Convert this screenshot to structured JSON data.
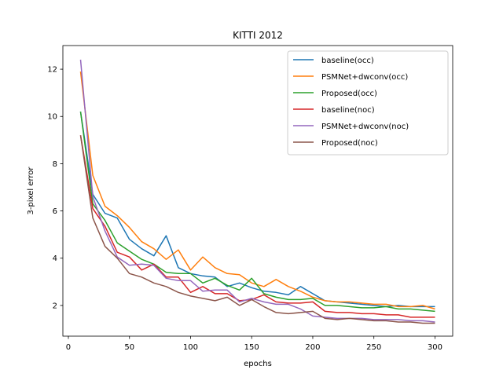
{
  "chart_data": {
    "type": "line",
    "title": "KITTI 2012",
    "xlabel": "epochs",
    "ylabel": "3-pixel error",
    "xlim": [
      -4.5,
      314.5
    ],
    "ylim": [
      0.7,
      13.0
    ],
    "xticks": [
      0,
      50,
      100,
      150,
      200,
      250,
      300
    ],
    "yticks": [
      2,
      4,
      6,
      8,
      10,
      12
    ],
    "grid": false,
    "legend_position": "top-right",
    "x": [
      10,
      20,
      30,
      40,
      50,
      60,
      70,
      80,
      90,
      100,
      110,
      120,
      130,
      140,
      150,
      160,
      170,
      180,
      190,
      200,
      210,
      220,
      230,
      240,
      250,
      260,
      270,
      280,
      290,
      300
    ],
    "series": [
      {
        "name": "baseline(occ)",
        "color": "#1f77b4",
        "values": [
          10.2,
          6.7,
          5.9,
          5.7,
          4.8,
          4.4,
          4.1,
          4.95,
          3.6,
          3.35,
          3.25,
          3.2,
          2.8,
          2.95,
          2.75,
          2.6,
          2.55,
          2.45,
          2.8,
          2.5,
          2.2,
          2.15,
          2.1,
          2.05,
          2.0,
          1.95,
          2.0,
          1.95,
          1.95,
          1.95
        ]
      },
      {
        "name": "PSMNet+dwconv(occ)",
        "color": "#ff7f0e",
        "values": [
          11.9,
          7.5,
          6.2,
          5.8,
          5.3,
          4.7,
          4.4,
          3.95,
          4.35,
          3.5,
          4.05,
          3.6,
          3.35,
          3.3,
          2.95,
          2.8,
          3.1,
          2.8,
          2.6,
          2.35,
          2.2,
          2.15,
          2.15,
          2.1,
          2.05,
          2.05,
          1.95,
          1.95,
          2.0,
          1.85
        ]
      },
      {
        "name": "Proposed(occ)",
        "color": "#2ca02c",
        "values": [
          10.2,
          6.3,
          5.6,
          4.65,
          4.3,
          3.95,
          3.75,
          3.4,
          3.35,
          3.35,
          2.95,
          3.15,
          2.85,
          2.65,
          3.15,
          2.5,
          2.35,
          2.25,
          2.25,
          2.3,
          2.0,
          2.0,
          1.95,
          1.9,
          1.9,
          1.95,
          1.85,
          1.85,
          1.8,
          1.75
        ]
      },
      {
        "name": "baseline(noc)",
        "color": "#d62728",
        "values": [
          9.2,
          6.1,
          5.35,
          4.25,
          4.05,
          3.5,
          3.75,
          3.2,
          3.2,
          2.55,
          2.8,
          2.5,
          2.5,
          2.2,
          2.25,
          2.45,
          2.15,
          2.1,
          2.1,
          2.15,
          1.75,
          1.7,
          1.7,
          1.65,
          1.65,
          1.6,
          1.6,
          1.5,
          1.5,
          1.5
        ]
      },
      {
        "name": "PSMNet+dwconv(noc)",
        "color": "#9467bd",
        "values": [
          12.4,
          6.6,
          5.15,
          4.05,
          3.7,
          3.75,
          3.7,
          3.15,
          3.05,
          3.05,
          2.6,
          2.65,
          2.65,
          2.15,
          2.3,
          2.15,
          2.05,
          2.05,
          1.85,
          1.55,
          1.5,
          1.45,
          1.45,
          1.45,
          1.4,
          1.4,
          1.4,
          1.35,
          1.35,
          1.3
        ]
      },
      {
        "name": "Proposed(noc)",
        "color": "#8c564b",
        "values": [
          9.2,
          5.7,
          4.5,
          4.0,
          3.35,
          3.2,
          2.95,
          2.8,
          2.55,
          2.4,
          2.3,
          2.2,
          2.35,
          2.0,
          2.25,
          1.95,
          1.7,
          1.65,
          1.7,
          1.75,
          1.45,
          1.4,
          1.45,
          1.4,
          1.35,
          1.35,
          1.3,
          1.3,
          1.25,
          1.25
        ]
      }
    ]
  }
}
